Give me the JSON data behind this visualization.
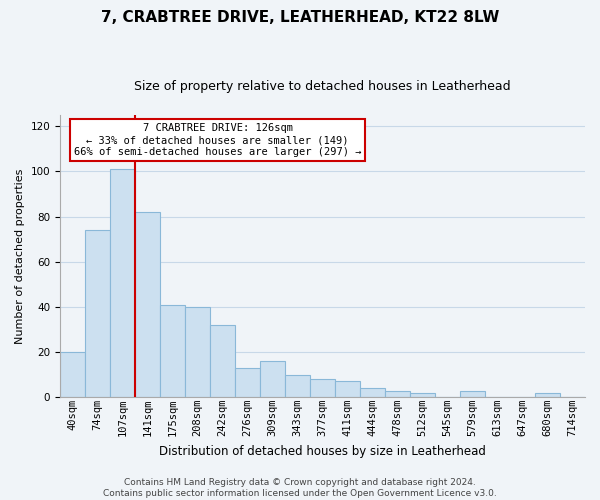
{
  "title": "7, CRABTREE DRIVE, LEATHERHEAD, KT22 8LW",
  "subtitle": "Size of property relative to detached houses in Leatherhead",
  "xlabel": "Distribution of detached houses by size in Leatherhead",
  "ylabel": "Number of detached properties",
  "bar_labels": [
    "40sqm",
    "74sqm",
    "107sqm",
    "141sqm",
    "175sqm",
    "208sqm",
    "242sqm",
    "276sqm",
    "309sqm",
    "343sqm",
    "377sqm",
    "411sqm",
    "444sqm",
    "478sqm",
    "512sqm",
    "545sqm",
    "579sqm",
    "613sqm",
    "647sqm",
    "680sqm",
    "714sqm"
  ],
  "bar_values": [
    20,
    74,
    101,
    82,
    41,
    40,
    32,
    13,
    16,
    10,
    8,
    7,
    4,
    3,
    2,
    0,
    3,
    0,
    0,
    2,
    0
  ],
  "bar_color": "#cce0f0",
  "bar_edge_color": "#8ab8d8",
  "vline_color": "#cc0000",
  "ylim": [
    0,
    125
  ],
  "yticks": [
    0,
    20,
    40,
    60,
    80,
    100,
    120
  ],
  "annotation_text": "7 CRABTREE DRIVE: 126sqm\n← 33% of detached houses are smaller (149)\n66% of semi-detached houses are larger (297) →",
  "annotation_box_color": "#ffffff",
  "annotation_box_edge": "#cc0000",
  "footer_line1": "Contains HM Land Registry data © Crown copyright and database right 2024.",
  "footer_line2": "Contains public sector information licensed under the Open Government Licence v3.0.",
  "bg_color": "#f0f4f8",
  "grid_color": "#c8d8e8",
  "title_fontsize": 11,
  "subtitle_fontsize": 9,
  "xlabel_fontsize": 8.5,
  "ylabel_fontsize": 8,
  "tick_fontsize": 7.5,
  "footer_fontsize": 6.5
}
